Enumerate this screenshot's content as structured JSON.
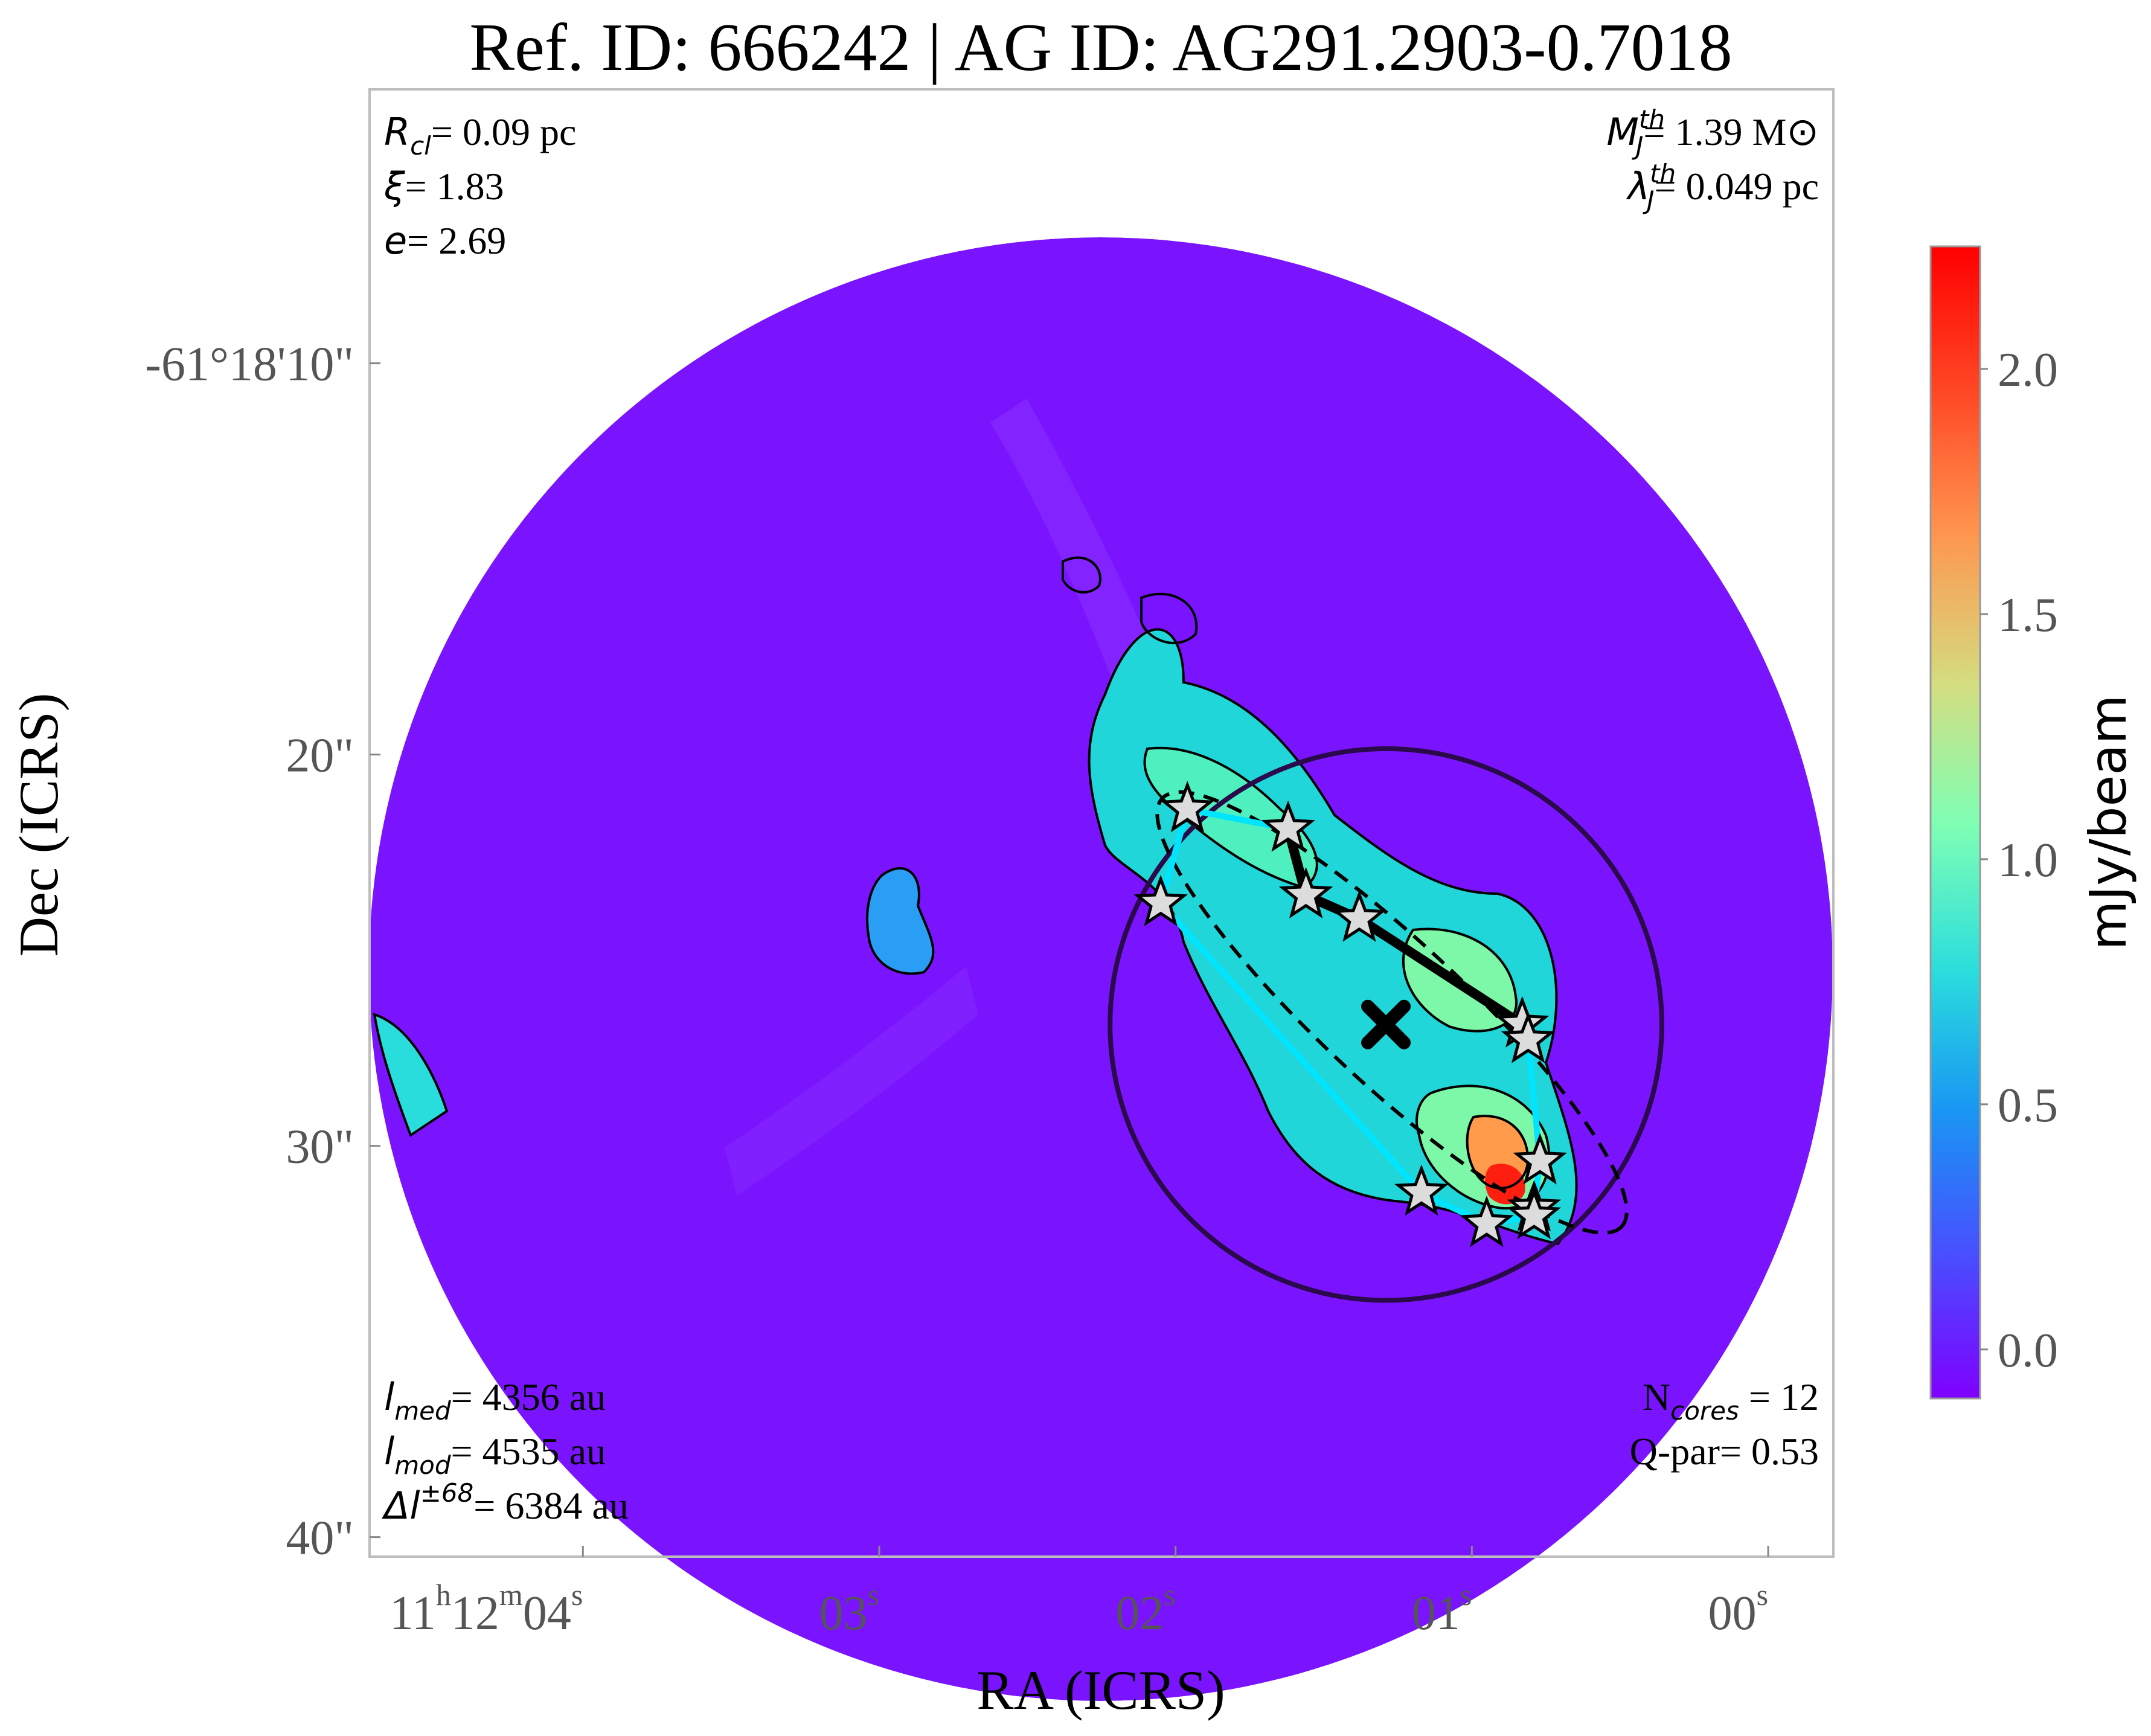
{
  "title": "Ref. ID: 666242 | AG ID: AG291.2903-0.7018",
  "chart_data": {
    "type": "heatmap",
    "xlabel": "RA (ICRS)",
    "ylabel": "Dec (ICRS)",
    "x_ticks": [
      {
        "main": "11",
        "s1": "h",
        "m": "12",
        "s2": "m",
        "v": "04",
        "s3": "s",
        "ra_sec": 4.0
      },
      {
        "v": "03",
        "s3": "s",
        "ra_sec": 3.0
      },
      {
        "v": "02",
        "s3": "s",
        "ra_sec": 2.0
      },
      {
        "v": "01",
        "s3": "s",
        "ra_sec": 1.0
      },
      {
        "v": "00",
        "s3": "s",
        "ra_sec": 0.0
      }
    ],
    "y_ticks": [
      {
        "label": "-61°18'10\"",
        "dec_arcsec": 10
      },
      {
        "label": "20\"",
        "dec_arcsec": 20
      },
      {
        "label": "30\"",
        "dec_arcsec": 30
      },
      {
        "label": "40\"",
        "dec_arcsec": 40
      }
    ],
    "x_range_ra_sec": [
      4.72,
      -0.22
    ],
    "y_range_dec_arcsec": [
      3.0,
      40.5
    ],
    "colorbar": {
      "label": "mJy/beam",
      "range": [
        -0.1,
        2.25
      ],
      "ticks": [
        "0.0",
        "0.5",
        "1.0",
        "1.5",
        "2.0"
      ],
      "tick_values": [
        0.0,
        0.5,
        1.0,
        1.5,
        2.0
      ],
      "colormap": "rainbow"
    },
    "colors": {
      "background_field": "#7a14ff",
      "mst_edges": "#00e5ff",
      "thick_edge": "#000000",
      "circle": "#2a0a4a",
      "star_fill": "#dcdcdc"
    },
    "cores": [
      {
        "ra_sec": 1.96,
        "dec_arcsec": 21.4
      },
      {
        "ra_sec": 1.62,
        "dec_arcsec": 21.9
      },
      {
        "ra_sec": 2.05,
        "dec_arcsec": 23.8
      },
      {
        "ra_sec": 1.56,
        "dec_arcsec": 23.6
      },
      {
        "ra_sec": 1.38,
        "dec_arcsec": 24.2
      },
      {
        "ra_sec": 0.83,
        "dec_arcsec": 26.9
      },
      {
        "ra_sec": 0.81,
        "dec_arcsec": 27.3
      },
      {
        "ra_sec": 0.77,
        "dec_arcsec": 30.4
      },
      {
        "ra_sec": 0.79,
        "dec_arcsec": 31.6
      },
      {
        "ra_sec": 0.79,
        "dec_arcsec": 31.8
      },
      {
        "ra_sec": 1.17,
        "dec_arcsec": 31.2
      },
      {
        "ra_sec": 0.95,
        "dec_arcsec": 32.0
      }
    ],
    "mst_edges": [
      [
        2,
        0
      ],
      [
        0,
        1
      ],
      [
        1,
        3
      ],
      [
        3,
        4
      ],
      [
        4,
        5
      ],
      [
        5,
        6
      ],
      [
        6,
        7
      ],
      [
        7,
        8
      ],
      [
        8,
        9
      ],
      [
        9,
        11
      ],
      [
        11,
        10
      ],
      [
        10,
        2
      ]
    ],
    "thick_edges": [
      [
        1,
        3
      ],
      [
        3,
        4
      ],
      [
        4,
        5
      ]
    ],
    "center": {
      "ra_sec": 1.29,
      "dec_arcsec": 26.9
    }
  },
  "annotations": {
    "top_left": [
      {
        "sym": "R",
        "sub": "cl",
        "sup": "",
        "text": "= 0.09 pc"
      },
      {
        "sym": "ξ",
        "sub": "",
        "sup": "",
        "text": "= 1.83"
      },
      {
        "sym": "e",
        "sub": "",
        "sup": "",
        "text": "= 2.69"
      }
    ],
    "top_right": [
      {
        "sym": "M",
        "sub": "J",
        "sup": "th",
        "text": "= 1.39 M⊙"
      },
      {
        "sym": "λ",
        "sub": "J",
        "sup": "th",
        "text": "= 0.049 pc"
      }
    ],
    "bottom_left": [
      {
        "sym": "l",
        "sub": "med",
        "sup": "",
        "text": "= 4356 au"
      },
      {
        "sym": "l",
        "sub": "mod",
        "sup": "",
        "text": "= 4535 au"
      },
      {
        "sym": "Δl",
        "sub": "",
        "sup": "±68",
        "text": "= 6384 au"
      }
    ],
    "bottom_right": [
      {
        "pre": "N",
        "sub": "cores",
        "text": " = 12"
      },
      {
        "pre": "Q-par",
        "sub": "",
        "text": "= 0.53"
      }
    ]
  }
}
